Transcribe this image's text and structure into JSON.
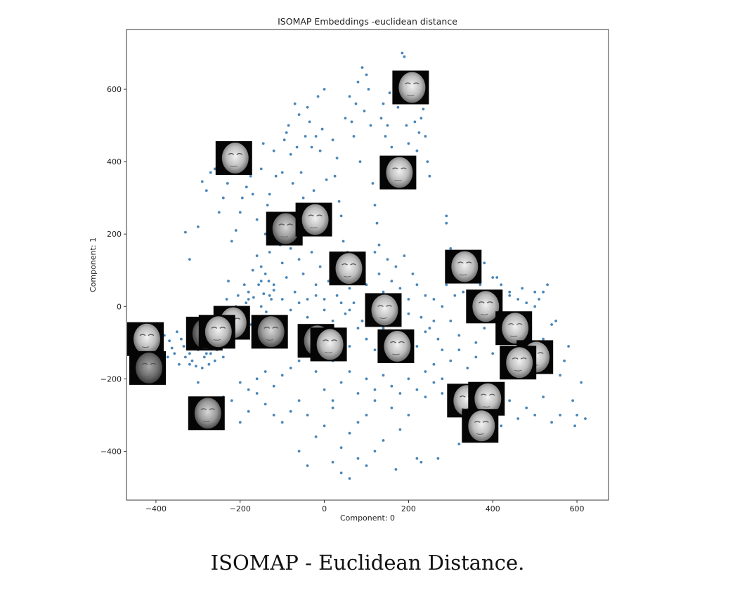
{
  "caption": "ISOMAP - Euclidean Distance.",
  "chart_data": {
    "type": "scatter",
    "title": "ISOMAP Embeddings -euclidean distance",
    "xlabel": "Component: 0",
    "ylabel": "Component: 1",
    "xlim": [
      -470,
      675
    ],
    "ylim": [
      -535,
      765
    ],
    "xticks": [
      -400,
      -200,
      0,
      200,
      400,
      600
    ],
    "xtick_labels": [
      "−400",
      "−200",
      "0",
      "200",
      "400",
      "600"
    ],
    "yticks": [
      -400,
      -200,
      0,
      200,
      400,
      600
    ],
    "ytick_labels": [
      "−400",
      "−200",
      "0",
      "200",
      "400",
      "600"
    ],
    "grid": false,
    "marker_color": "#4a86b8",
    "face_thumbnails": [
      {
        "x": -425,
        "y": -90,
        "shade": "light"
      },
      {
        "x": -420,
        "y": -170,
        "shade": "dark"
      },
      {
        "x": -285,
        "y": -75,
        "shade": "dark"
      },
      {
        "x": -220,
        "y": -45,
        "shade": "light"
      },
      {
        "x": -255,
        "y": -70,
        "shade": "light"
      },
      {
        "x": -130,
        "y": -70,
        "shade": "mid"
      },
      {
        "x": -280,
        "y": -295,
        "shade": "mid"
      },
      {
        "x": -215,
        "y": 410,
        "shade": "light"
      },
      {
        "x": -95,
        "y": 215,
        "shade": "mid"
      },
      {
        "x": -25,
        "y": 240,
        "shade": "light"
      },
      {
        "x": 55,
        "y": 105,
        "shade": "light"
      },
      {
        "x": -20,
        "y": -95,
        "shade": "mid"
      },
      {
        "x": 10,
        "y": -105,
        "shade": "light"
      },
      {
        "x": 140,
        "y": -10,
        "shade": "light"
      },
      {
        "x": 170,
        "y": -110,
        "shade": "light"
      },
      {
        "x": 175,
        "y": 370,
        "shade": "light"
      },
      {
        "x": 205,
        "y": 605,
        "shade": "light"
      },
      {
        "x": 330,
        "y": 110,
        "shade": "light"
      },
      {
        "x": 380,
        "y": 0,
        "shade": "light"
      },
      {
        "x": 450,
        "y": -60,
        "shade": "light"
      },
      {
        "x": 500,
        "y": -140,
        "shade": "light"
      },
      {
        "x": 460,
        "y": -155,
        "shade": "light"
      },
      {
        "x": 335,
        "y": -260,
        "shade": "light"
      },
      {
        "x": 385,
        "y": -255,
        "shade": "light"
      },
      {
        "x": 370,
        "y": -330,
        "shade": "light"
      }
    ],
    "points": [
      [
        -440,
        -70
      ],
      [
        -430,
        -110
      ],
      [
        -420,
        -130
      ],
      [
        -410,
        -90
      ],
      [
        -400,
        -60
      ],
      [
        -395,
        -150
      ],
      [
        -390,
        -100
      ],
      [
        -385,
        -120
      ],
      [
        -380,
        -80
      ],
      [
        -372,
        -140
      ],
      [
        -368,
        -95
      ],
      [
        -362,
        -115
      ],
      [
        -356,
        -130
      ],
      [
        -350,
        -70
      ],
      [
        -345,
        -160
      ],
      [
        -340,
        -90
      ],
      [
        -334,
        -110
      ],
      [
        -330,
        -140
      ],
      [
        -324,
        -60
      ],
      [
        -320,
        -130
      ],
      [
        -314,
        -150
      ],
      [
        -310,
        -100
      ],
      [
        -305,
        -165
      ],
      [
        -300,
        -120
      ],
      [
        -295,
        -80
      ],
      [
        -290,
        -170
      ],
      [
        -285,
        -140
      ],
      [
        -280,
        -110
      ],
      [
        -274,
        -160
      ],
      [
        -270,
        -130
      ],
      [
        -265,
        -90
      ],
      [
        -260,
        -150
      ],
      [
        -255,
        -120
      ],
      [
        -250,
        -100
      ],
      [
        -245,
        -60
      ],
      [
        -240,
        -140
      ],
      [
        -236,
        -30
      ],
      [
        -232,
        20
      ],
      [
        -228,
        70
      ],
      [
        -222,
        -10
      ],
      [
        -215,
        -40
      ],
      [
        -210,
        0
      ],
      [
        -205,
        30
      ],
      [
        -198,
        -20
      ],
      [
        -192,
        -70
      ],
      [
        -186,
        10
      ],
      [
        -180,
        40
      ],
      [
        -174,
        -50
      ],
      [
        -168,
        25
      ],
      [
        -162,
        -30
      ],
      [
        -156,
        60
      ],
      [
        -150,
        0
      ],
      [
        -144,
        35
      ],
      [
        -138,
        -15
      ],
      [
        -132,
        70
      ],
      [
        -126,
        20
      ],
      [
        -120,
        45
      ],
      [
        -114,
        -35
      ],
      [
        -330,
        205
      ],
      [
        -320,
        130
      ],
      [
        -300,
        220
      ],
      [
        -290,
        345
      ],
      [
        -280,
        320
      ],
      [
        -270,
        370
      ],
      [
        -260,
        380
      ],
      [
        -250,
        260
      ],
      [
        -240,
        300
      ],
      [
        -230,
        340
      ],
      [
        -220,
        180
      ],
      [
        -210,
        210
      ],
      [
        -200,
        260
      ],
      [
        -195,
        300
      ],
      [
        -185,
        330
      ],
      [
        -175,
        360
      ],
      [
        -170,
        310
      ],
      [
        -160,
        240
      ],
      [
        -150,
        380
      ],
      [
        -145,
        450
      ],
      [
        -140,
        200
      ],
      [
        -135,
        280
      ],
      [
        -130,
        310
      ],
      [
        -120,
        430
      ],
      [
        -115,
        360
      ],
      [
        -110,
        250
      ],
      [
        -105,
        170
      ],
      [
        -100,
        370
      ],
      [
        -95,
        460
      ],
      [
        -90,
        480
      ],
      [
        -85,
        500
      ],
      [
        -80,
        420
      ],
      [
        -75,
        340
      ],
      [
        -70,
        560
      ],
      [
        -65,
        440
      ],
      [
        -60,
        530
      ],
      [
        -55,
        370
      ],
      [
        -50,
        300
      ],
      [
        -45,
        470
      ],
      [
        -40,
        550
      ],
      [
        -35,
        510
      ],
      [
        -30,
        440
      ],
      [
        -25,
        320
      ],
      [
        -20,
        470
      ],
      [
        -15,
        580
      ],
      [
        -10,
        430
      ],
      [
        -5,
        490
      ],
      [
        0,
        600
      ],
      [
        5,
        350
      ],
      [
        10,
        280
      ],
      [
        15,
        240
      ],
      [
        20,
        460
      ],
      [
        25,
        360
      ],
      [
        30,
        410
      ],
      [
        35,
        290
      ],
      [
        40,
        250
      ],
      [
        45,
        180
      ],
      [
        50,
        520
      ],
      [
        55,
        150
      ],
      [
        60,
        580
      ],
      [
        65,
        510
      ],
      [
        70,
        470
      ],
      [
        75,
        560
      ],
      [
        80,
        620
      ],
      [
        85,
        400
      ],
      [
        90,
        660
      ],
      [
        95,
        540
      ],
      [
        100,
        640
      ],
      [
        105,
        600
      ],
      [
        110,
        500
      ],
      [
        115,
        340
      ],
      [
        120,
        280
      ],
      [
        125,
        230
      ],
      [
        130,
        170
      ],
      [
        135,
        520
      ],
      [
        140,
        560
      ],
      [
        145,
        470
      ],
      [
        150,
        500
      ],
      [
        155,
        590
      ],
      [
        160,
        440
      ],
      [
        165,
        390
      ],
      [
        170,
        630
      ],
      [
        175,
        550
      ],
      [
        180,
        600
      ],
      [
        185,
        700
      ],
      [
        190,
        690
      ],
      [
        195,
        500
      ],
      [
        200,
        450
      ],
      [
        205,
        610
      ],
      [
        210,
        580
      ],
      [
        215,
        510
      ],
      [
        220,
        430
      ],
      [
        225,
        480
      ],
      [
        230,
        520
      ],
      [
        235,
        545
      ],
      [
        240,
        470
      ],
      [
        245,
        400
      ],
      [
        250,
        360
      ],
      [
        -160,
        140
      ],
      [
        -150,
        110
      ],
      [
        -140,
        90
      ],
      [
        -130,
        150
      ],
      [
        -120,
        60
      ],
      [
        -110,
        180
      ],
      [
        -100,
        120
      ],
      [
        -90,
        80
      ],
      [
        -80,
        160
      ],
      [
        -70,
        40
      ],
      [
        -60,
        130
      ],
      [
        -50,
        90
      ],
      [
        -40,
        20
      ],
      [
        -30,
        150
      ],
      [
        -20,
        60
      ],
      [
        -10,
        110
      ],
      [
        0,
        -10
      ],
      [
        10,
        70
      ],
      [
        20,
        130
      ],
      [
        30,
        30
      ],
      [
        40,
        90
      ],
      [
        50,
        -20
      ],
      [
        60,
        50
      ],
      [
        70,
        10
      ],
      [
        80,
        120
      ],
      [
        90,
        -40
      ],
      [
        100,
        60
      ],
      [
        110,
        30
      ],
      [
        120,
        150
      ],
      [
        130,
        90
      ],
      [
        140,
        40
      ],
      [
        150,
        130
      ],
      [
        160,
        70
      ],
      [
        170,
        110
      ],
      [
        180,
        50
      ],
      [
        190,
        140
      ],
      [
        200,
        20
      ],
      [
        210,
        90
      ],
      [
        220,
        60
      ],
      [
        230,
        -30
      ],
      [
        240,
        30
      ],
      [
        250,
        -60
      ],
      [
        260,
        20
      ],
      [
        270,
        -90
      ],
      [
        280,
        0
      ],
      [
        290,
        60
      ],
      [
        300,
        -40
      ],
      [
        310,
        30
      ],
      [
        320,
        -80
      ],
      [
        330,
        40
      ],
      [
        340,
        -20
      ],
      [
        350,
        90
      ],
      [
        360,
        -100
      ],
      [
        370,
        60
      ],
      [
        380,
        -60
      ],
      [
        390,
        20
      ],
      [
        400,
        -130
      ],
      [
        410,
        80
      ],
      [
        420,
        -30
      ],
      [
        430,
        -100
      ],
      [
        440,
        30
      ],
      [
        450,
        -160
      ],
      [
        460,
        -60
      ],
      [
        470,
        50
      ],
      [
        480,
        -140
      ],
      [
        490,
        -20
      ],
      [
        500,
        40
      ],
      [
        510,
        -170
      ],
      [
        520,
        -90
      ],
      [
        530,
        -130
      ],
      [
        540,
        -50
      ],
      [
        550,
        -40
      ],
      [
        560,
        -190
      ],
      [
        570,
        -150
      ],
      [
        580,
        -110
      ],
      [
        590,
        -260
      ],
      [
        600,
        -300
      ],
      [
        610,
        -210
      ],
      [
        620,
        -310
      ],
      [
        595,
        -330
      ],
      [
        560,
        -300
      ],
      [
        540,
        -320
      ],
      [
        520,
        -250
      ],
      [
        500,
        -300
      ],
      [
        480,
        -280
      ],
      [
        460,
        -310
      ],
      [
        440,
        -260
      ],
      [
        420,
        -330
      ],
      [
        400,
        -300
      ],
      [
        380,
        -350
      ],
      [
        360,
        -310
      ],
      [
        340,
        -270
      ],
      [
        320,
        -380
      ],
      [
        300,
        -300
      ],
      [
        280,
        -240
      ],
      [
        260,
        -210
      ],
      [
        240,
        -250
      ],
      [
        220,
        -420
      ],
      [
        200,
        -300
      ],
      [
        180,
        -340
      ],
      [
        160,
        -280
      ],
      [
        140,
        -370
      ],
      [
        120,
        -260
      ],
      [
        100,
        -300
      ],
      [
        80,
        -320
      ],
      [
        60,
        -350
      ],
      [
        40,
        -390
      ],
      [
        20,
        -280
      ],
      [
        0,
        -330
      ],
      [
        -20,
        -360
      ],
      [
        -40,
        -300
      ],
      [
        -60,
        -260
      ],
      [
        -80,
        -290
      ],
      [
        -100,
        -320
      ],
      [
        -120,
        -300
      ],
      [
        -140,
        -270
      ],
      [
        -160,
        -240
      ],
      [
        -180,
        -290
      ],
      [
        -200,
        -320
      ],
      [
        -220,
        -260
      ],
      [
        -240,
        -250
      ],
      [
        -260,
        -280
      ],
      [
        -300,
        -210
      ],
      [
        -320,
        -160
      ],
      [
        -280,
        -130
      ],
      [
        -60,
        -400
      ],
      [
        -40,
        -440
      ],
      [
        20,
        -430
      ],
      [
        40,
        -460
      ],
      [
        60,
        -475
      ],
      [
        80,
        -420
      ],
      [
        100,
        -440
      ],
      [
        120,
        -400
      ],
      [
        170,
        -450
      ],
      [
        230,
        -430
      ],
      [
        270,
        -420
      ],
      [
        -20,
        -180
      ],
      [
        0,
        -230
      ],
      [
        20,
        -260
      ],
      [
        40,
        -210
      ],
      [
        60,
        -180
      ],
      [
        80,
        -240
      ],
      [
        100,
        -200
      ],
      [
        120,
        -230
      ],
      [
        140,
        -190
      ],
      [
        160,
        -220
      ],
      [
        180,
        -240
      ],
      [
        200,
        -200
      ],
      [
        220,
        -230
      ],
      [
        240,
        -180
      ],
      [
        260,
        -160
      ],
      [
        280,
        -200
      ],
      [
        300,
        -150
      ],
      [
        320,
        -120
      ],
      [
        340,
        -170
      ],
      [
        360,
        -140
      ],
      [
        -200,
        -210
      ],
      [
        -180,
        -230
      ],
      [
        -160,
        -200
      ],
      [
        -140,
        -180
      ],
      [
        -120,
        -220
      ],
      [
        -100,
        -190
      ],
      [
        -80,
        -170
      ],
      [
        -60,
        -150
      ],
      [
        -40,
        -120
      ],
      [
        -20,
        -90
      ],
      [
        0,
        -60
      ],
      [
        20,
        -150
      ],
      [
        40,
        -80
      ],
      [
        60,
        -110
      ],
      [
        80,
        -60
      ],
      [
        100,
        -90
      ],
      [
        120,
        -120
      ],
      [
        140,
        -60
      ],
      [
        160,
        -40
      ],
      [
        180,
        -80
      ],
      [
        200,
        -20
      ],
      [
        220,
        -110
      ],
      [
        240,
        -70
      ],
      [
        260,
        -40
      ],
      [
        280,
        -120
      ],
      [
        300,
        140
      ],
      [
        290,
        250
      ],
      [
        290,
        230
      ],
      [
        300,
        160
      ],
      [
        320,
        120
      ],
      [
        340,
        80
      ],
      [
        360,
        100
      ],
      [
        380,
        120
      ],
      [
        400,
        80
      ],
      [
        420,
        60
      ],
      [
        440,
        40
      ],
      [
        460,
        20
      ],
      [
        480,
        10
      ],
      [
        500,
        0
      ],
      [
        510,
        20
      ],
      [
        520,
        40
      ],
      [
        530,
        60
      ],
      [
        -100,
        20
      ],
      [
        -80,
        -10
      ],
      [
        -60,
        10
      ],
      [
        -40,
        -30
      ],
      [
        -20,
        30
      ],
      [
        0,
        20
      ],
      [
        20,
        -40
      ],
      [
        40,
        10
      ],
      [
        60,
        -10
      ],
      [
        -170,
        100
      ],
      [
        -150,
        70
      ],
      [
        -130,
        30
      ],
      [
        -180,
        20
      ],
      [
        -200,
        -10
      ],
      [
        -190,
        60
      ]
    ]
  }
}
